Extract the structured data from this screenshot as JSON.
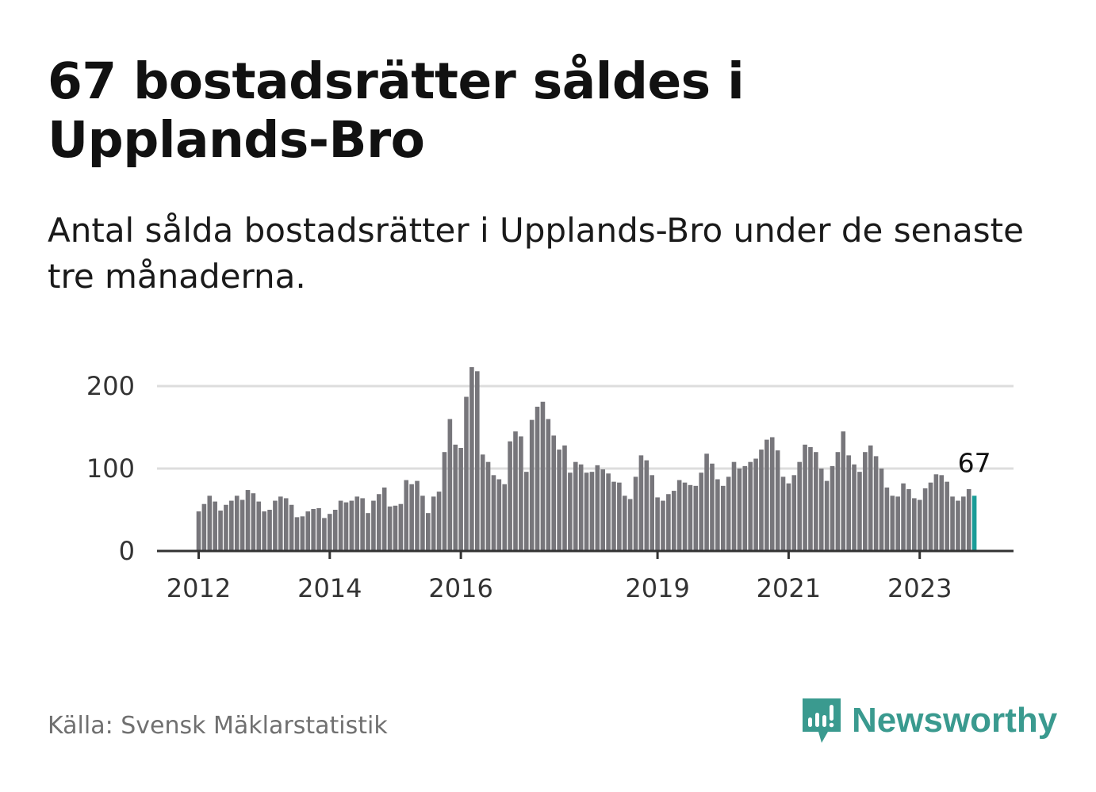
{
  "title": "67 bostadsrätter såldes i Upplands-Bro",
  "subtitle": "Antal sålda bostadsrätter i Upplands-Bro under de senaste tre månaderna.",
  "source": "Källa: Svensk Mäklarstatistik",
  "brand": {
    "name": "Newsworthy",
    "icon": "newsworthy-logo-icon",
    "color": "#3a9a8f"
  },
  "colors": {
    "bar": "#77767b",
    "highlight": "#1a9c97",
    "grid": "#dddddd",
    "axis": "#333333"
  },
  "chart_data": {
    "type": "bar",
    "title": "",
    "xlabel": "",
    "ylabel": "",
    "ylim": [
      0,
      225
    ],
    "yticks": [
      0,
      100,
      200
    ],
    "ytick_labels": [
      "0",
      "100",
      "200"
    ],
    "xtick_labels": [
      "2012",
      "2014",
      "2016",
      "2019",
      "2021",
      "2023"
    ],
    "xtick_index": [
      0,
      24,
      48,
      84,
      108,
      132
    ],
    "start": "2012-01",
    "highlight_label": "67",
    "values": [
      48,
      57,
      67,
      60,
      49,
      56,
      61,
      67,
      62,
      74,
      70,
      60,
      48,
      50,
      61,
      66,
      64,
      56,
      41,
      42,
      48,
      51,
      52,
      40,
      45,
      50,
      61,
      59,
      61,
      66,
      64,
      46,
      61,
      69,
      77,
      54,
      55,
      57,
      86,
      81,
      85,
      67,
      46,
      66,
      72,
      120,
      160,
      129,
      125,
      187,
      223,
      218,
      117,
      108,
      92,
      87,
      81,
      133,
      145,
      139,
      96,
      159,
      175,
      181,
      160,
      140,
      123,
      128,
      95,
      108,
      105,
      95,
      96,
      104,
      99,
      94,
      84,
      83,
      67,
      63,
      90,
      116,
      110,
      92,
      65,
      61,
      69,
      73,
      86,
      83,
      80,
      79,
      95,
      118,
      106,
      87,
      79,
      90,
      108,
      100,
      103,
      108,
      112,
      123,
      135,
      138,
      122,
      90,
      82,
      92,
      108,
      129,
      126,
      120,
      100,
      85,
      103,
      120,
      145,
      116,
      105,
      96,
      120,
      128,
      115,
      100,
      77,
      67,
      66,
      82,
      75,
      64,
      62,
      76,
      83,
      93,
      92,
      84,
      66,
      61,
      66,
      75,
      67
    ]
  }
}
